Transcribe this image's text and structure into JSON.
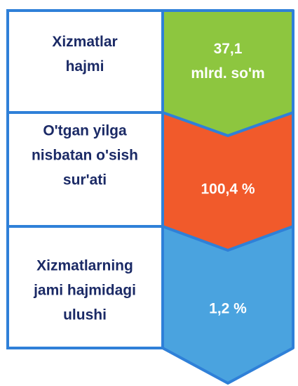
{
  "rows": [
    {
      "label": [
        "Xizmatlar",
        "hajmi"
      ],
      "value": [
        "37,1",
        "mlrd. so'm"
      ]
    },
    {
      "label": [
        "O'tgan yilga",
        "nisbatan o'sish",
        "sur'ati"
      ],
      "value": [
        "100,4 %"
      ]
    },
    {
      "label": [
        "Xizmatlarning",
        "jami hajmidagi",
        "ulushi"
      ],
      "value": [
        "1,2 %"
      ]
    }
  ]
}
